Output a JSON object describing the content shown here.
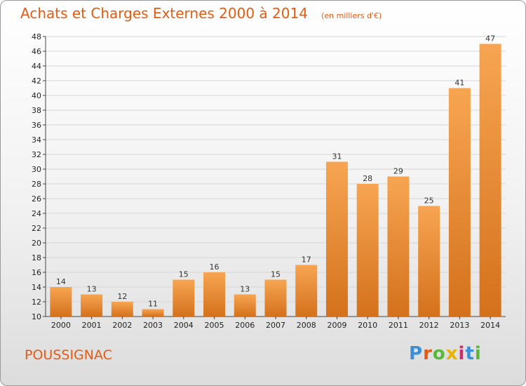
{
  "header": {
    "title": "Achats et Charges Externes 2000 à 2014",
    "unit": "(en milliers d'€)"
  },
  "footer": {
    "town": "POUSSIGNAC",
    "logo_text": "Proxiti"
  },
  "colors": {
    "accent": "#e85a10",
    "bar_light": "#f7a552",
    "bar_dark": "#d4711c"
  },
  "chart_data": {
    "type": "bar",
    "title": "Achats et Charges Externes 2000 à 2014",
    "subtitle": "(en milliers d'€)",
    "categories": [
      "2000",
      "2001",
      "2002",
      "2003",
      "2004",
      "2005",
      "2006",
      "2007",
      "2008",
      "2009",
      "2010",
      "2011",
      "2012",
      "2013",
      "2014"
    ],
    "values": [
      14,
      13,
      12,
      11,
      15,
      16,
      13,
      15,
      17,
      31,
      28,
      29,
      25,
      41,
      47
    ],
    "ylim": [
      10,
      48
    ],
    "yticks": [
      10,
      12,
      14,
      16,
      18,
      20,
      22,
      24,
      26,
      28,
      30,
      32,
      34,
      36,
      38,
      40,
      42,
      44,
      46,
      48
    ],
    "grid": true,
    "data_labels": true
  }
}
